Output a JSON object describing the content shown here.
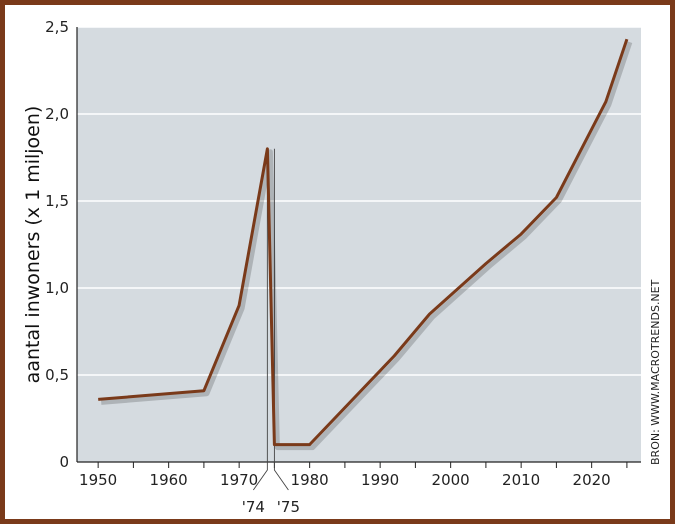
{
  "chart_data": {
    "type": "line",
    "ylabel": "aantal inwoners (x 1 miljoen)",
    "source": "BRON: WWW.MACROTRENDS.NET",
    "xlim": [
      1947,
      2027
    ],
    "ylim": [
      0,
      2.5
    ],
    "x_ticks": [
      1950,
      1960,
      1970,
      1980,
      1990,
      2000,
      2010,
      2020
    ],
    "x_tick_labels": [
      "1950",
      "1960",
      "1970",
      "1980",
      "1990",
      "2000",
      "2010",
      "2020"
    ],
    "y_ticks": [
      0,
      0.5,
      1,
      1.5,
      2,
      2.5
    ],
    "y_tick_labels": [
      "0",
      "0,5",
      "1,0",
      "1,5",
      "2,0",
      "2,5"
    ],
    "annotations": [
      {
        "label": "'74",
        "x": 1974
      },
      {
        "label": "'75",
        "x": 1975
      }
    ],
    "grid": true,
    "colors": {
      "line": "#7a3a1a",
      "plot_bg": "#d5dbe0",
      "grid": "#ffffff",
      "frame": "#7a3a1a"
    },
    "series": [
      {
        "x": [
          1950,
          1965,
          1970,
          1974,
          1975,
          1980,
          1992,
          1997,
          2005,
          2010,
          2015,
          2022,
          2025
        ],
        "y": [
          0.36,
          0.41,
          0.9,
          1.8,
          0.1,
          0.1,
          0.61,
          0.85,
          1.14,
          1.31,
          1.52,
          2.07,
          2.43
        ]
      }
    ]
  }
}
